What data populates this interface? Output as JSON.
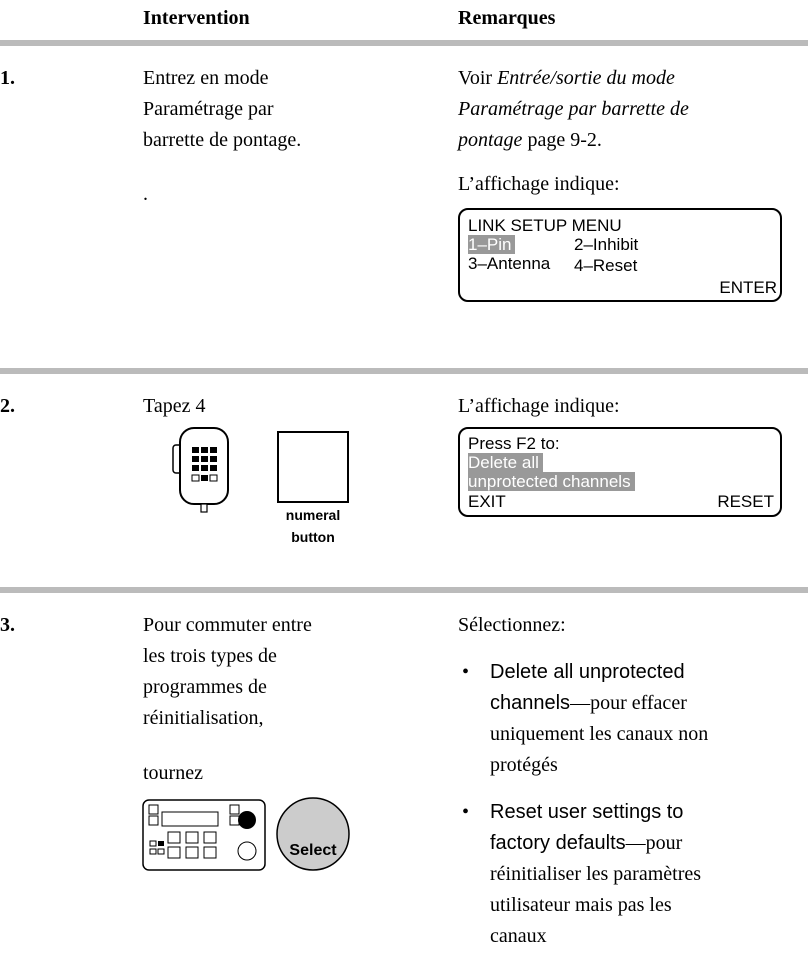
{
  "header": {
    "intervention": "Intervention",
    "remarques": "Remarques"
  },
  "steps": [
    {
      "number": "1.",
      "intervention": [
        "Entrez en mode",
        "Paramétrage par",
        "barrette de pontage.",
        "."
      ],
      "remarks": {
        "see": "Voir",
        "link_lines": [
          "Entrée/sortie du mode",
          "Paramétrage par barrette de",
          "pontage"
        ],
        "page": "page 9-2.",
        "display_intro": "L’affichage indique:"
      },
      "display": {
        "title": "LINK SETUP MENU",
        "options": [
          "1–Pin",
          "2–Inhibit",
          "3–Antenna",
          "4–Reset"
        ],
        "softkey": "ENTER"
      }
    },
    {
      "number": "2.",
      "intervention": [
        "Tapez 4"
      ],
      "button_label": [
        "numeral",
        "button"
      ],
      "remarks": {
        "display_intro": "L’affichage indique:"
      },
      "display": {
        "lines": [
          "Press F2  to:",
          "Delete all",
          "unprotected channels"
        ],
        "left_key": "EXIT",
        "right_key": "RESET"
      }
    },
    {
      "number": "3.",
      "intervention": [
        "Pour commuter entre",
        "les trois types de",
        "programmes de",
        "réinitialisation,"
      ],
      "action": "tournez",
      "knob_label": "Select",
      "remarks": {
        "intro": "Sélectionnez:",
        "options": [
          {
            "name_lines": [
              "Delete all unprotected",
              "channels"
            ],
            "desc_lines": [
              "—pour effacer",
              "uniquement les canaux non",
              "protégés"
            ]
          },
          {
            "name_lines": [
              "Reset user settings to",
              "factory defaults"
            ],
            "desc_lines": [
              "—pour",
              "réinitialiser les paramètres",
              "utilisateur mais pas les",
              "canaux"
            ]
          }
        ]
      }
    }
  ]
}
